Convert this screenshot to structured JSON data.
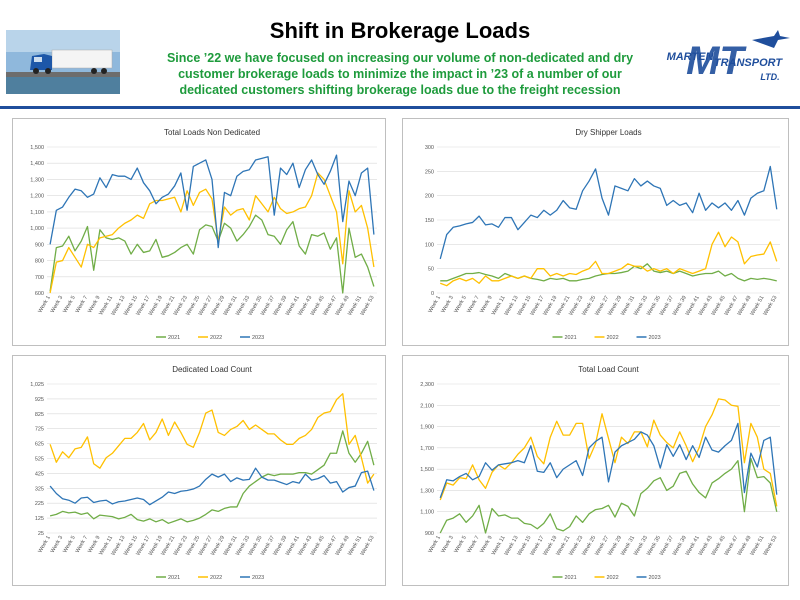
{
  "header": {
    "title": "Shift in Brokerage Loads",
    "subtitle_lines": [
      "Since ’22 we have focused on increasing our volume of non-dedicated and dry",
      "customer brokerage loads to minimize the impact in ’23 of a number of our",
      "dedicated customers shifting brokerage loads due to the freight recession"
    ],
    "logo": {
      "monogram": "MT",
      "name1": "MARTEN",
      "name2": "TRANSPORT",
      "suffix": "LTD."
    }
  },
  "chart_data": [
    {
      "type": "line",
      "title": "Total Loads Non Dedicated",
      "legend": "bottom",
      "grid": true,
      "categories": [
        "Week 1",
        null,
        "Week 3",
        null,
        "Week 5",
        null,
        "Week 7",
        null,
        "Week 9",
        null,
        "Week 11",
        null,
        "Week 13",
        null,
        "Week 15",
        null,
        "Week 17",
        null,
        "Week 19",
        null,
        "Week 21",
        null,
        "Week 23",
        null,
        "Week 25",
        null,
        "Week 27",
        null,
        "Week 29",
        null,
        "Week 31",
        null,
        "Week 33",
        null,
        "Week 35",
        null,
        "Week 37",
        null,
        "Week 39",
        null,
        "Week 41",
        null,
        "Week 43",
        null,
        "Week 45",
        null,
        "Week 47",
        null,
        "Week 49",
        null,
        "Week 51",
        null,
        "Week 53"
      ],
      "ylim": [
        600,
        1500
      ],
      "yticks": [
        600,
        700,
        800,
        900,
        {
          "value": 1000,
          "label": "1,000"
        },
        {
          "value": 1100,
          "label": "1,100"
        },
        {
          "value": 1200,
          "label": "1,200"
        },
        {
          "value": 1300,
          "label": "1,300"
        },
        {
          "value": 1400,
          "label": "1,400"
        },
        {
          "value": 1500,
          "label": "1,500"
        }
      ],
      "series": [
        {
          "name": "2021",
          "color": "#70ad47",
          "values": [
            610,
            880,
            890,
            950,
            860,
            920,
            1010,
            740,
            990,
            940,
            930,
            940,
            920,
            840,
            900,
            850,
            860,
            930,
            820,
            830,
            850,
            880,
            900,
            840,
            990,
            1020,
            1010,
            920,
            1030,
            1000,
            920,
            960,
            1010,
            1080,
            1050,
            960,
            950,
            900,
            990,
            1040,
            890,
            840,
            960,
            950,
            970,
            870,
            940,
            600,
            1000,
            820,
            840,
            760,
            640
          ]
        },
        {
          "name": "2022",
          "color": "#ffc000",
          "values": [
            600,
            790,
            800,
            880,
            820,
            760,
            900,
            880,
            940,
            950,
            960,
            1000,
            1030,
            1050,
            1080,
            1060,
            1150,
            1170,
            1170,
            1180,
            1190,
            1100,
            1230,
            1140,
            1220,
            1240,
            1180,
            920,
            1130,
            1080,
            1110,
            1120,
            1050,
            1200,
            1150,
            1100,
            1190,
            1120,
            1090,
            1100,
            1120,
            1130,
            1200,
            1340,
            1300,
            1200,
            1100,
            780,
            1230,
            1100,
            1140,
            1000,
            760
          ]
        },
        {
          "name": "2023",
          "color": "#2e75b6",
          "values": [
            900,
            1110,
            1130,
            1190,
            1240,
            1230,
            1190,
            1210,
            1310,
            1250,
            1330,
            1320,
            1320,
            1300,
            1370,
            1280,
            1230,
            1150,
            1190,
            1210,
            1260,
            1340,
            1110,
            1380,
            1400,
            1420,
            1300,
            880,
            1220,
            1200,
            1320,
            1350,
            1360,
            1420,
            1430,
            1440,
            1080,
            1370,
            1330,
            1400,
            1250,
            1360,
            1420,
            1330,
            1270,
            1350,
            1450,
            1040,
            1290,
            1200,
            1340,
            1370,
            960
          ]
        }
      ]
    },
    {
      "type": "line",
      "title": "Dry Shipper Loads",
      "legend": "bottom",
      "grid": true,
      "categories": [
        "Week 1",
        null,
        "Week 3",
        null,
        "Week 5",
        null,
        "Week 7",
        null,
        "Week 9",
        null,
        "Week 11",
        null,
        "Week 13",
        null,
        "Week 15",
        null,
        "Week 17",
        null,
        "Week 19",
        null,
        "Week 21",
        null,
        "Week 23",
        null,
        "Week 25",
        null,
        "Week 27",
        null,
        "Week 29",
        null,
        "Week 31",
        null,
        "Week 33",
        null,
        "Week 35",
        null,
        "Week 37",
        null,
        "Week 39",
        null,
        "Week 41",
        null,
        "Week 43",
        null,
        "Week 45",
        null,
        "Week 47",
        null,
        "Week 49",
        null,
        "Week 51",
        null,
        "Week 53"
      ],
      "ylim": [
        0,
        300
      ],
      "yticks": [
        0,
        50,
        100,
        150,
        200,
        250,
        300
      ],
      "series": [
        {
          "name": "2021",
          "color": "#70ad47",
          "values": [
            25,
            25,
            30,
            35,
            40,
            40,
            42,
            38,
            35,
            30,
            40,
            35,
            30,
            35,
            30,
            28,
            25,
            30,
            28,
            30,
            25,
            25,
            28,
            30,
            35,
            38,
            40,
            40,
            42,
            45,
            55,
            50,
            60,
            45,
            42,
            45,
            40,
            45,
            40,
            35,
            38,
            40,
            40,
            45,
            35,
            40,
            30,
            25,
            30,
            28,
            30,
            28,
            25
          ]
        },
        {
          "name": "2022",
          "color": "#ffc000",
          "values": [
            20,
            15,
            25,
            30,
            25,
            30,
            20,
            35,
            25,
            25,
            30,
            35,
            30,
            35,
            30,
            50,
            50,
            35,
            40,
            35,
            40,
            38,
            45,
            50,
            65,
            40,
            40,
            45,
            50,
            60,
            55,
            55,
            45,
            50,
            45,
            50,
            40,
            50,
            45,
            40,
            45,
            50,
            100,
            125,
            95,
            115,
            105,
            60,
            75,
            78,
            80,
            105,
            65
          ]
        },
        {
          "name": "2023",
          "color": "#2e75b6",
          "values": [
            70,
            120,
            135,
            138,
            142,
            145,
            158,
            140,
            142,
            135,
            155,
            155,
            130,
            145,
            160,
            155,
            170,
            160,
            170,
            190,
            175,
            172,
            210,
            230,
            255,
            195,
            160,
            220,
            215,
            210,
            235,
            220,
            230,
            220,
            215,
            180,
            190,
            180,
            185,
            165,
            205,
            170,
            185,
            175,
            185,
            170,
            190,
            160,
            195,
            205,
            210,
            260,
            172
          ]
        }
      ]
    },
    {
      "type": "line",
      "title": "Dedicated Load Count",
      "legend": "bottom",
      "grid": true,
      "categories": [
        "Week 1",
        null,
        "Week 3",
        null,
        "Week 5",
        null,
        "Week 7",
        null,
        "Week 9",
        null,
        "Week 11",
        null,
        "Week 13",
        null,
        "Week 15",
        null,
        "Week 17",
        null,
        "Week 19",
        null,
        "Week 21",
        null,
        "Week 23",
        null,
        "Week 25",
        null,
        "Week 27",
        null,
        "Week 29",
        null,
        "Week 31",
        null,
        "Week 33",
        null,
        "Week 35",
        null,
        "Week 37",
        null,
        "Week 39",
        null,
        "Week 41",
        null,
        "Week 43",
        null,
        "Week 45",
        null,
        "Week 47",
        null,
        "Week 49",
        null,
        "Week 51",
        null,
        "Week 53"
      ],
      "ylim": [
        25,
        1025
      ],
      "yticks": [
        25,
        125,
        225,
        325,
        425,
        525,
        625,
        725,
        825,
        925,
        {
          "value": 1025,
          "label": "1,025"
        }
      ],
      "series": [
        {
          "name": "2021",
          "color": "#70ad47",
          "values": [
            140,
            150,
            170,
            160,
            165,
            150,
            160,
            120,
            145,
            140,
            135,
            120,
            130,
            150,
            115,
            105,
            120,
            100,
            115,
            90,
            105,
            120,
            100,
            110,
            125,
            150,
            180,
            170,
            190,
            200,
            200,
            290,
            340,
            370,
            400,
            420,
            410,
            420,
            420,
            420,
            430,
            430,
            420,
            450,
            480,
            560,
            560,
            710,
            560,
            500,
            560,
            640,
            480
          ]
        },
        {
          "name": "2022",
          "color": "#ffc000",
          "values": [
            620,
            500,
            570,
            530,
            590,
            600,
            670,
            490,
            460,
            530,
            560,
            610,
            660,
            660,
            700,
            760,
            650,
            700,
            790,
            680,
            770,
            700,
            620,
            600,
            700,
            830,
            850,
            700,
            680,
            720,
            740,
            780,
            720,
            750,
            720,
            690,
            690,
            650,
            620,
            620,
            660,
            680,
            720,
            800,
            830,
            840,
            920,
            960,
            620,
            680,
            530,
            360,
            420
          ]
        },
        {
          "name": "2023",
          "color": "#2e75b6",
          "values": [
            340,
            290,
            255,
            245,
            225,
            260,
            265,
            230,
            240,
            245,
            220,
            235,
            240,
            250,
            260,
            250,
            215,
            240,
            265,
            300,
            290,
            305,
            310,
            320,
            340,
            385,
            420,
            400,
            420,
            370,
            395,
            380,
            385,
            460,
            400,
            380,
            380,
            365,
            350,
            370,
            360,
            420,
            380,
            390,
            410,
            360,
            370,
            300,
            330,
            340,
            430,
            440,
            310
          ]
        }
      ]
    },
    {
      "type": "line",
      "title": "Total Load Count",
      "legend": "bottom",
      "grid": true,
      "categories": [
        "Week 1",
        null,
        "Week 3",
        null,
        "Week 5",
        null,
        "Week 7",
        null,
        "Week 9",
        null,
        "Week 11",
        null,
        "Week 13",
        null,
        "Week 15",
        null,
        "Week 17",
        null,
        "Week 19",
        null,
        "Week 21",
        null,
        "Week 23",
        null,
        "Week 25",
        null,
        "Week 27",
        null,
        "Week 29",
        null,
        "Week 31",
        null,
        "Week 33",
        null,
        "Week 35",
        null,
        "Week 37",
        null,
        "Week 39",
        null,
        "Week 41",
        null,
        "Week 43",
        null,
        "Week 45",
        null,
        "Week 47",
        null,
        "Week 49",
        null,
        "Week 51",
        null,
        "Week 53"
      ],
      "ylim": [
        900,
        2300
      ],
      "yticks": [
        900,
        {
          "value": 1100,
          "label": "1,100"
        },
        {
          "value": 1300,
          "label": "1,300"
        },
        {
          "value": 1500,
          "label": "1,500"
        },
        {
          "value": 1700,
          "label": "1,700"
        },
        {
          "value": 1900,
          "label": "1,900"
        },
        {
          "value": 2100,
          "label": "2,100"
        },
        {
          "value": 2300,
          "label": "2,300"
        }
      ],
      "series": [
        {
          "name": "2021",
          "color": "#70ad47",
          "values": [
            900,
            1020,
            1040,
            1080,
            1000,
            1060,
            1160,
            900,
            1130,
            1060,
            1070,
            1040,
            1040,
            990,
            980,
            940,
            990,
            1080,
            940,
            920,
            960,
            1060,
            1000,
            1080,
            1120,
            1130,
            1160,
            1050,
            1180,
            1150,
            1060,
            1270,
            1320,
            1390,
            1420,
            1300,
            1340,
            1460,
            1480,
            1360,
            1280,
            1230,
            1370,
            1410,
            1460,
            1500,
            1580,
            1100,
            1600,
            1420,
            1430,
            1370,
            1100
          ]
        },
        {
          "name": "2022",
          "color": "#ffc000",
          "values": [
            1210,
            1370,
            1350,
            1420,
            1410,
            1540,
            1400,
            1320,
            1470,
            1540,
            1500,
            1560,
            1640,
            1700,
            1800,
            1620,
            1550,
            1800,
            1950,
            1820,
            1820,
            1930,
            1930,
            1600,
            1740,
            2020,
            1790,
            1560,
            1800,
            1740,
            1850,
            1850,
            1710,
            1960,
            1820,
            1750,
            1700,
            1850,
            1720,
            1570,
            1700,
            1900,
            2010,
            2160,
            2150,
            2100,
            2090,
            1560,
            1930,
            1800,
            1500,
            1460,
            1150
          ]
        },
        {
          "name": "2023",
          "color": "#2e75b6",
          "values": [
            1230,
            1400,
            1390,
            1430,
            1460,
            1400,
            1430,
            1560,
            1490,
            1540,
            1550,
            1560,
            1580,
            1560,
            1720,
            1480,
            1470,
            1560,
            1420,
            1500,
            1540,
            1580,
            1440,
            1700,
            1760,
            1800,
            1380,
            1660,
            1720,
            1750,
            1780,
            1850,
            1820,
            1720,
            1510,
            1730,
            1620,
            1730,
            1590,
            1720,
            1610,
            1800,
            1680,
            1660,
            1720,
            1770,
            1930,
            1280,
            1650,
            1520,
            1770,
            1800,
            1260
          ]
        }
      ]
    }
  ]
}
